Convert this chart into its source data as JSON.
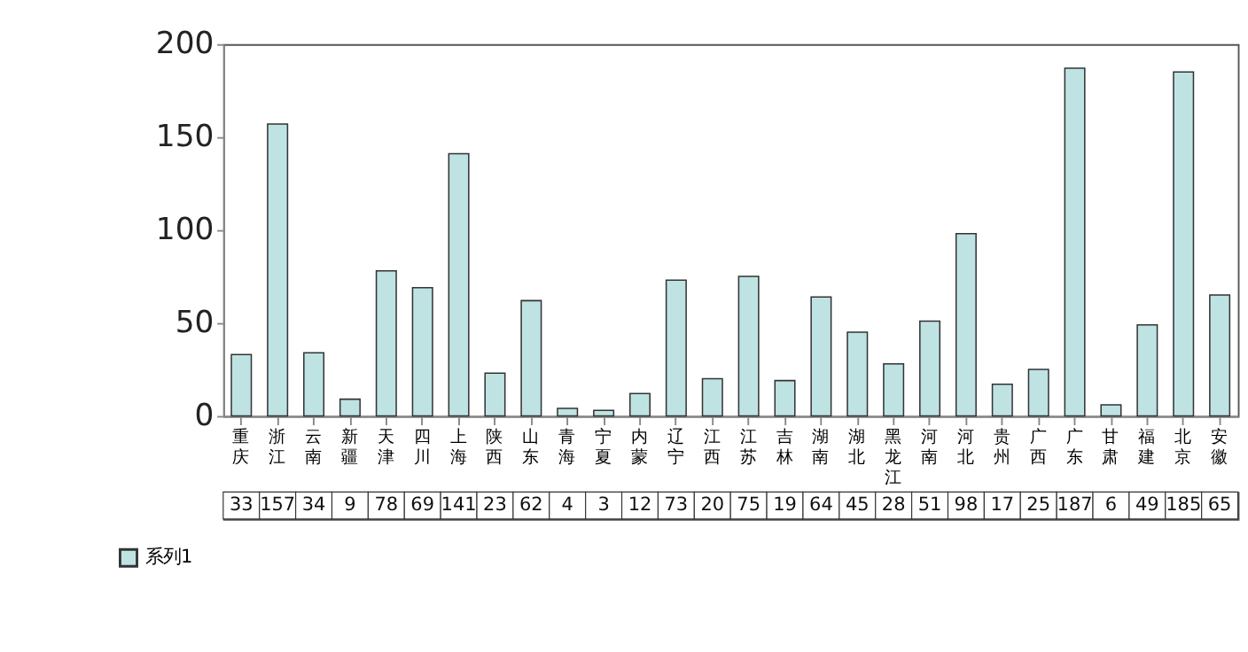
{
  "chart_data": {
    "type": "bar",
    "categories": [
      "重庆",
      "浙江",
      "云南",
      "新疆",
      "天津",
      "四川",
      "上海",
      "陕西",
      "山东",
      "青海",
      "宁夏",
      "内蒙",
      "辽宁",
      "江西",
      "江苏",
      "吉林",
      "湖南",
      "湖北",
      "黑龙江",
      "河南",
      "河北",
      "贵州",
      "广西",
      "广东",
      "甘肃",
      "福建",
      "北京",
      "安徽"
    ],
    "series": [
      {
        "name": "系列1",
        "color": "#bfe3e3",
        "values": [
          33,
          157,
          34,
          9,
          78,
          69,
          141,
          23,
          62,
          4,
          3,
          12,
          73,
          20,
          75,
          19,
          64,
          45,
          28,
          51,
          98,
          17,
          25,
          187,
          6,
          49,
          185,
          65
        ]
      }
    ],
    "ylim": [
      0,
      200
    ],
    "yticks": [
      0,
      50,
      100,
      150,
      200
    ],
    "grid": false,
    "data_labels": true,
    "legend": "bottom left"
  }
}
